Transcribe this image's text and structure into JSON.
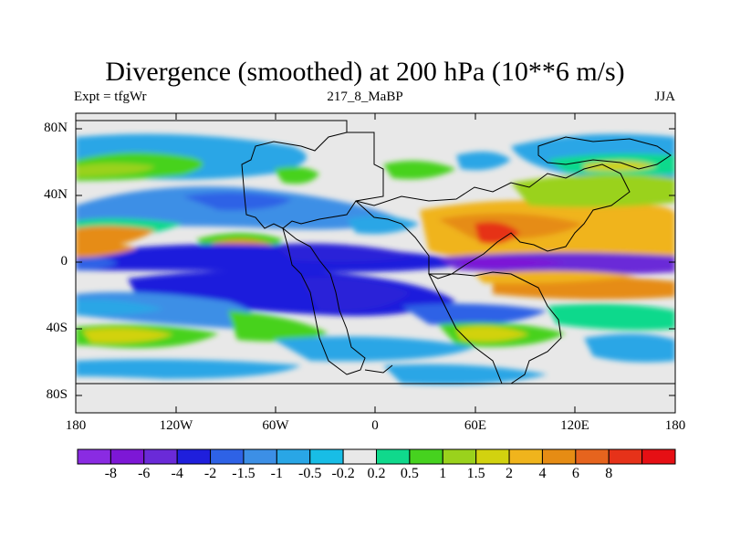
{
  "title": "Divergence (smoothed) at 200 hPa (10**6 m/s)",
  "subtitle_left": "Expt = tfgWr",
  "subtitle_center": "217_8_MaBP",
  "subtitle_right": "JJA",
  "y_axis_labels": [
    "80N",
    "40N",
    "0",
    "40S",
    "80S"
  ],
  "x_axis_labels": [
    "180",
    "120W",
    "60W",
    "0",
    "60E",
    "120E",
    "180"
  ],
  "colorbar": {
    "colors": [
      "#8a2be2",
      "#7d17d6",
      "#6a2ad8",
      "#1f1fdc",
      "#2e62e6",
      "#3c8fe6",
      "#29a6e6",
      "#18bde6",
      "#e8e8e8",
      "#10d98c",
      "#46d21f",
      "#9ad21c",
      "#d2d20f",
      "#f0b41c",
      "#e68c14",
      "#e6641e",
      "#e63219",
      "#e60f14"
    ],
    "labels": [
      "-8",
      "-6",
      "-4",
      "-2",
      "-1.5",
      "-1",
      "-0.5",
      "-0.2",
      "0.2",
      "0.5",
      "1",
      "1.5",
      "2",
      "4",
      "6",
      "8"
    ]
  }
}
